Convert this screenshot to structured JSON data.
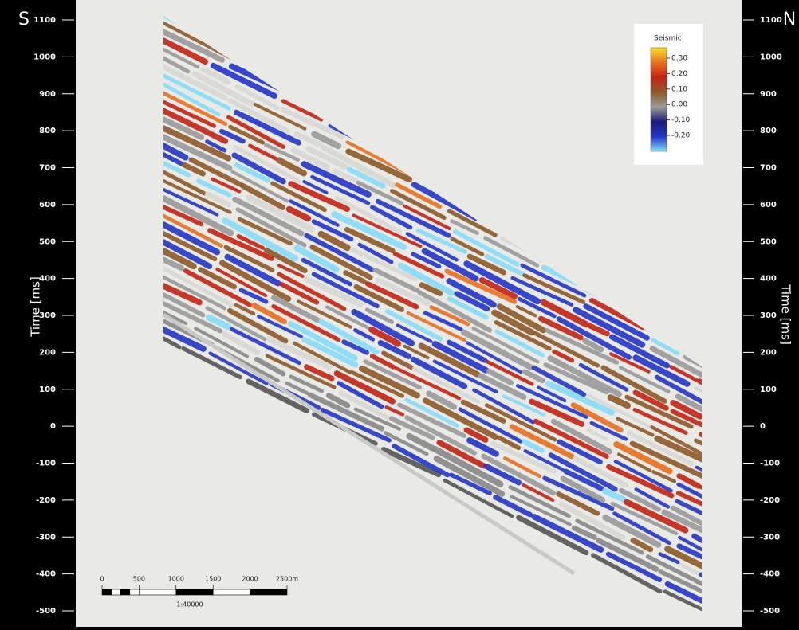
{
  "chart_data": {
    "type": "seismic-section",
    "left_label": "S",
    "right_label": "N",
    "y_label": "Time [ms]",
    "ylim": [
      -543,
      1154
    ],
    "yticks": [
      1100,
      1000,
      900,
      800,
      700,
      600,
      500,
      400,
      300,
      200,
      100,
      0,
      -100,
      -200,
      -300,
      -400,
      -500
    ],
    "colorbar": {
      "title": "Seismic",
      "lim": [
        -0.303,
        0.367
      ],
      "colors": [
        "#86dcf8",
        "#2436c8",
        "#1a1a7a",
        "#9a9a9a",
        "#8c5a28",
        "#c42414",
        "#e87020",
        "#f8e028"
      ],
      "ticks": [
        {
          "value": 0.3,
          "label": "0.30"
        },
        {
          "value": 0.2,
          "label": "0.20"
        },
        {
          "value": 0.1,
          "label": "0.10"
        },
        {
          "value": 0,
          "label": "0.00"
        },
        {
          "value": -0.1,
          "label": "-0.10"
        },
        {
          "value": -0.2,
          "label": "-0.20"
        }
      ]
    },
    "scalebar": {
      "lim": [
        0,
        2500
      ],
      "ticks": [
        0,
        500,
        1000,
        1500,
        2000,
        {
          "value": 2500,
          "label": "2500m"
        }
      ],
      "ratio": "1:40000"
    }
  }
}
